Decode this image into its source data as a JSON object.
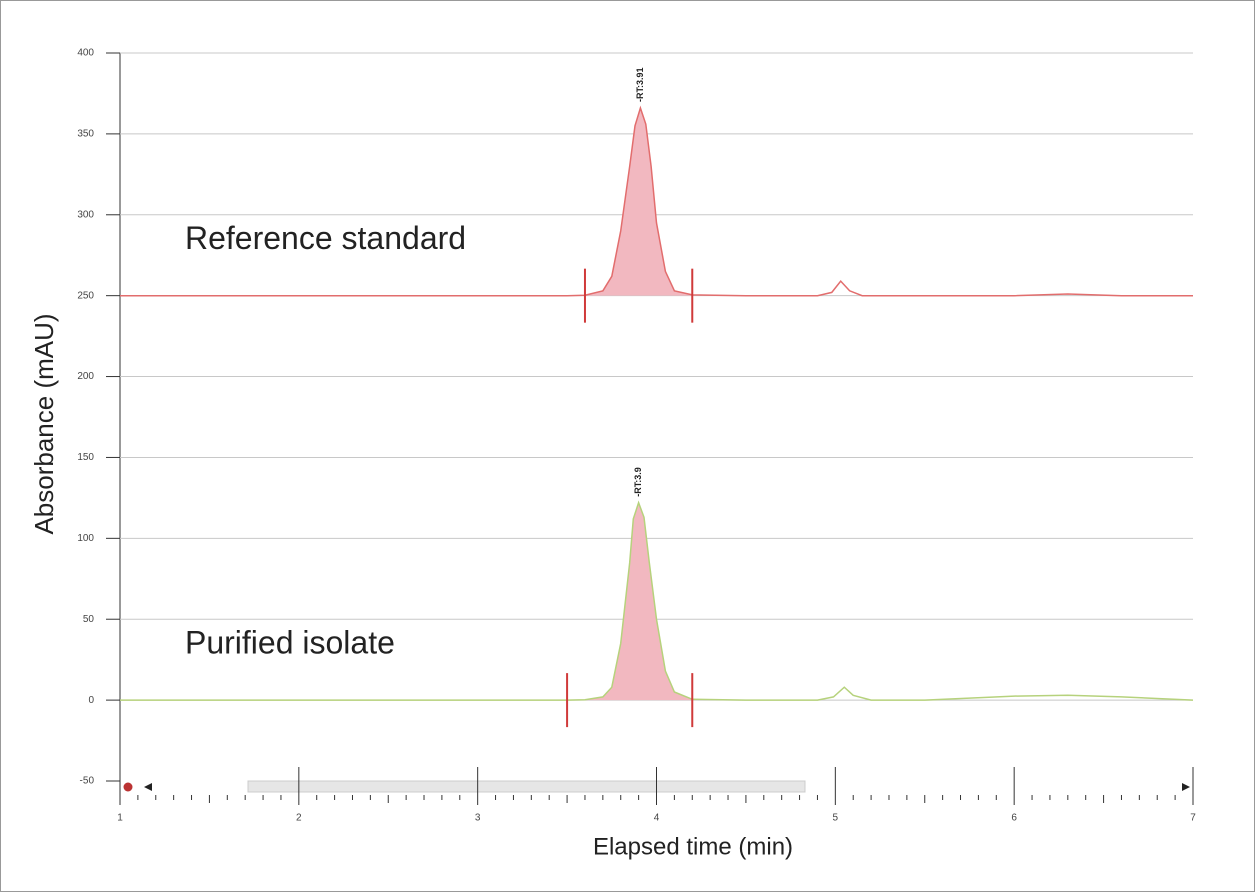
{
  "chart_data": {
    "type": "line",
    "xlabel": "Elapsed time (min)",
    "ylabel": "Absorbance (mAU)",
    "xlim": [
      1,
      7
    ],
    "xticks": [
      1,
      2,
      3,
      4,
      5,
      6,
      7
    ],
    "ylim": [
      -50,
      400
    ],
    "yticks": [
      -50,
      0,
      50,
      100,
      150,
      200,
      250,
      300,
      350,
      400
    ],
    "grid": true,
    "fill_color": "#f2b8c0",
    "marker_color": "#d03a3a",
    "series": [
      {
        "name": "Reference standard",
        "color": "#e26d6d",
        "peak_label": "-RT:3.91",
        "baseline": 250,
        "bounds": [
          3.6,
          4.2
        ],
        "x": [
          1,
          2,
          3,
          3.5,
          3.6,
          3.7,
          3.75,
          3.8,
          3.85,
          3.88,
          3.91,
          3.94,
          3.97,
          4.0,
          4.05,
          4.1,
          4.2,
          4.5,
          4.9,
          4.98,
          5.03,
          5.08,
          5.15,
          5.5,
          6.0,
          6.3,
          6.6,
          7
        ],
        "values": [
          250,
          250,
          250,
          250,
          250.3,
          253,
          262,
          290,
          330,
          355,
          366,
          356,
          330,
          295,
          265,
          253,
          250.5,
          250,
          250,
          252,
          259,
          253,
          250,
          250,
          250,
          251,
          250,
          250
        ]
      },
      {
        "name": "Purified isolate",
        "color": "#b6d27c",
        "peak_label": "-RT:3.9",
        "baseline": 0,
        "bounds": [
          3.5,
          4.2
        ],
        "x": [
          1,
          2,
          3,
          3.5,
          3.6,
          3.7,
          3.75,
          3.8,
          3.85,
          3.87,
          3.9,
          3.93,
          3.96,
          4.0,
          4.05,
          4.1,
          4.2,
          4.5,
          4.9,
          4.99,
          5.05,
          5.1,
          5.2,
          5.5,
          6.0,
          6.3,
          6.6,
          7
        ],
        "values": [
          0,
          0,
          0,
          0,
          0.2,
          2,
          8,
          35,
          85,
          112,
          122,
          113,
          85,
          50,
          18,
          5,
          0.5,
          0,
          0,
          2,
          8,
          3,
          0,
          0,
          2.5,
          3,
          2,
          0
        ]
      }
    ]
  }
}
